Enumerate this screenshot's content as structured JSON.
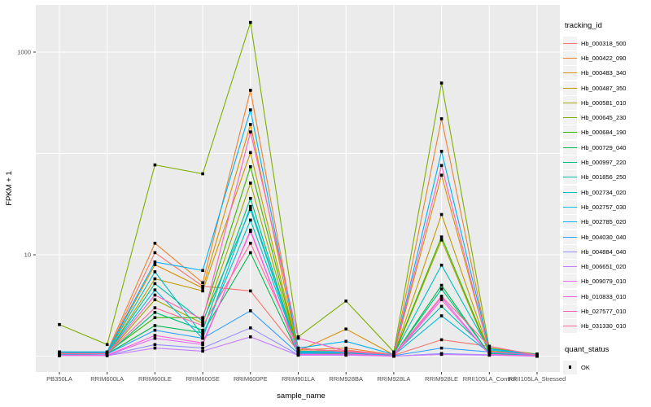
{
  "chart_data": {
    "type": "line",
    "title": "",
    "xlabel": "sample_name",
    "ylabel": "FPKM + 1",
    "y_scale": "log10",
    "ylim": [
      0.66,
      2900
    ],
    "grid": true,
    "panel_color": "#EBEBEB",
    "gridline_color": "#FFFFFF",
    "point_color": "#000000",
    "axis_text_color": "#4d4d4d",
    "y_ticks": [
      {
        "label": "1000",
        "value": 1000
      },
      {
        "label": "10",
        "value": 10
      }
    ],
    "grid_values": [
      1,
      10,
      100,
      1000
    ],
    "categories": [
      "PB350LA",
      "RRIM600LA",
      "RRIM600LE",
      "RRIM600SE",
      "RRIM600PE",
      "RRIM901LA",
      "RRIM928BA",
      "RRIM928LA",
      "RRIM928LE",
      "RRII105LA_Control",
      "RRII105LA_Stressed"
    ],
    "legend": {
      "title": "tracking_id",
      "position": "right"
    },
    "quant_legend": {
      "title": "quant_status",
      "items": [
        {
          "label": "OK",
          "shape": "black-square"
        }
      ]
    },
    "series": [
      {
        "name": "Hb_000318_500",
        "color": "#F8766D",
        "values": [
          1.08,
          1.08,
          10.5,
          4.9,
          4.4,
          1.12,
          1.15,
          1.02,
          1.45,
          1.25,
          1.02
        ]
      },
      {
        "name": "Hb_000422_090",
        "color": "#EA8331",
        "values": [
          1.1,
          1.1,
          13,
          5.3,
          420,
          1.15,
          1.2,
          1.03,
          220,
          1.12,
          1.03
        ]
      },
      {
        "name": "Hb_000483_340",
        "color": "#D89000",
        "values": [
          1.06,
          1.08,
          8.0,
          4.7,
          193,
          1.12,
          1.85,
          1.03,
          61,
          1.12,
          1.03
        ]
      },
      {
        "name": "Hb_000487_350",
        "color": "#C09B00",
        "values": [
          1.05,
          1.06,
          5.8,
          4.4,
          102,
          1.1,
          1.12,
          1.02,
          25,
          1.1,
          1.02
        ]
      },
      {
        "name": "Hb_000581_010",
        "color": "#A3A500",
        "values": [
          1.03,
          1.05,
          3.6,
          2.1,
          51,
          1.06,
          1.08,
          1.01,
          14,
          1.06,
          1.01
        ]
      },
      {
        "name": "Hb_000645_230",
        "color": "#7CAE00",
        "values": [
          2.05,
          1.3,
          77,
          63,
          1960,
          1.55,
          3.5,
          1.1,
          495,
          1.2,
          1.05
        ]
      },
      {
        "name": "Hb_000684_190",
        "color": "#39B600",
        "values": [
          1.08,
          1.08,
          2.4,
          2.4,
          74,
          1.08,
          1.1,
          1.03,
          15,
          1.1,
          1.03
        ]
      },
      {
        "name": "Hb_000729_040",
        "color": "#00BB4E",
        "values": [
          1.04,
          1.05,
          2.0,
          1.7,
          10.5,
          1.05,
          1.06,
          1.01,
          5.0,
          1.05,
          1.01
        ]
      },
      {
        "name": "Hb_000997_220",
        "color": "#00BF7D",
        "values": [
          1.05,
          1.05,
          2.7,
          1.8,
          36,
          1.06,
          1.08,
          1.02,
          4.6,
          1.06,
          1.02
        ]
      },
      {
        "name": "Hb_001856_250",
        "color": "#00C1A3",
        "values": [
          1.08,
          1.06,
          5.2,
          2.2,
          28,
          1.1,
          1.1,
          1.03,
          3.1,
          1.1,
          1.02
        ]
      },
      {
        "name": "Hb_002734_020",
        "color": "#00BFC4",
        "values": [
          1.1,
          1.08,
          6.8,
          1.6,
          22,
          1.12,
          1.1,
          1.04,
          7.9,
          1.15,
          1.03
        ]
      },
      {
        "name": "Hb_002757_030",
        "color": "#00BAE0",
        "values": [
          1.06,
          1.06,
          4.5,
          1.5,
          30,
          1.08,
          1.08,
          1.02,
          2.5,
          1.08,
          1.02
        ]
      },
      {
        "name": "Hb_002785_020",
        "color": "#00B0F6",
        "values": [
          1.1,
          1.1,
          8.5,
          7.0,
          269,
          1.2,
          1.4,
          1.04,
          105,
          1.18,
          1.04
        ]
      },
      {
        "name": "Hb_004030_040",
        "color": "#35A2FF",
        "values": [
          1.05,
          1.05,
          1.8,
          1.5,
          2.8,
          1.06,
          1.1,
          1.01,
          1.2,
          1.1,
          1.01
        ]
      },
      {
        "name": "Hb_004884_040",
        "color": "#9590FF",
        "values": [
          1.02,
          1.02,
          1.3,
          1.2,
          1.9,
          1.03,
          1.04,
          1.0,
          1.06,
          1.03,
          1.0
        ]
      },
      {
        "name": "Hb_006651_020",
        "color": "#C77CFF",
        "values": [
          1.01,
          1.01,
          1.2,
          1.12,
          1.55,
          1.02,
          1.02,
          1.0,
          1.04,
          1.02,
          1.0
        ]
      },
      {
        "name": "Hb_009079_010",
        "color": "#E76BF3",
        "values": [
          1.02,
          1.02,
          1.5,
          1.3,
          17.5,
          1.04,
          1.05,
          1.0,
          3.8,
          1.04,
          1.0
        ]
      },
      {
        "name": "Hb_010833_010",
        "color": "#FA62DB",
        "values": [
          1.02,
          1.02,
          1.6,
          1.35,
          17,
          1.04,
          1.05,
          1.0,
          3.6,
          1.04,
          1.0
        ]
      },
      {
        "name": "Hb_027577_010",
        "color": "#FF62BC",
        "values": [
          1.06,
          1.06,
          4.0,
          2.3,
          163,
          1.5,
          1.12,
          1.04,
          76,
          1.1,
          1.03
        ]
      },
      {
        "name": "Hb_031330_010",
        "color": "#FF6A98",
        "values": [
          1.06,
          1.06,
          3.0,
          2.0,
          13,
          1.2,
          1.1,
          1.04,
          3.9,
          1.25,
          1.02
        ]
      }
    ]
  }
}
